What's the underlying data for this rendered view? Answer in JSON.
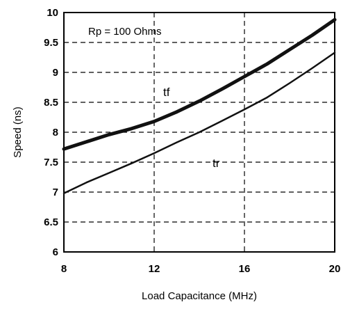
{
  "chart_data": {
    "type": "line",
    "title": "",
    "xlabel": "Load Capacitance (MHz)",
    "ylabel": "Speed (ns)",
    "xlim": [
      8,
      20
    ],
    "ylim": [
      6,
      10
    ],
    "xticks": [
      "8",
      "12",
      "16",
      "20"
    ],
    "yticks": [
      "6",
      "6.5",
      "7",
      "7.5",
      "8",
      "8.5",
      "9",
      "9.5",
      "10"
    ],
    "grid": true,
    "annotations": [
      "Rp = 100 Ohms"
    ],
    "series": [
      {
        "name": "tf",
        "x": [
          8,
          9,
          10,
          11,
          12,
          13,
          14,
          15,
          16,
          17,
          18,
          19,
          20
        ],
        "y": [
          7.72,
          7.84,
          7.96,
          8.06,
          8.18,
          8.34,
          8.52,
          8.72,
          8.93,
          9.14,
          9.38,
          9.62,
          9.88
        ]
      },
      {
        "name": "tr",
        "x": [
          8,
          9,
          10,
          11,
          12,
          13,
          14,
          15,
          16,
          17,
          18,
          19,
          20
        ],
        "y": [
          6.98,
          7.16,
          7.32,
          7.48,
          7.65,
          7.83,
          8.0,
          8.19,
          8.38,
          8.58,
          8.82,
          9.07,
          9.33
        ]
      }
    ]
  }
}
